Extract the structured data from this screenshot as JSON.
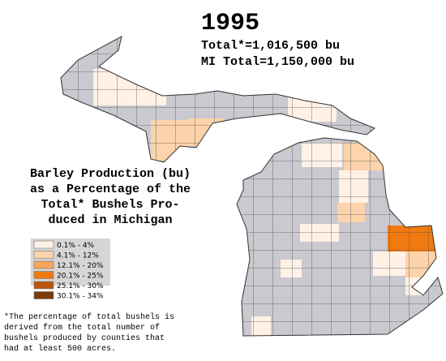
{
  "header": {
    "year": "1995",
    "total": "Total*=1,016,500 bu",
    "mi_total": "MI Total=1,150,000 bu"
  },
  "title_lines": [
    "Barley Production (bu)",
    "as a Percentage of the",
    "Total* Bushels Pro-",
    "duced in Michigan"
  ],
  "legend": [
    {
      "label": "0.1% - 4%",
      "color": "#fff1e6"
    },
    {
      "label": "4.1% - 12%",
      "color": "#fcd3aa"
    },
    {
      "label": "12.1% - 20%",
      "color": "#f9a458"
    },
    {
      "label": "20.1% - 25%",
      "color": "#f07a10"
    },
    {
      "label": "25.1% - 30%",
      "color": "#b8560f"
    },
    {
      "label": "30.1% - 34%",
      "color": "#7c3b07"
    }
  ],
  "footnote_lines": [
    "*The percentage of total bushels is",
    "derived from the total number of",
    "bushels produced by counties that",
    "had at least 500 acres."
  ]
}
